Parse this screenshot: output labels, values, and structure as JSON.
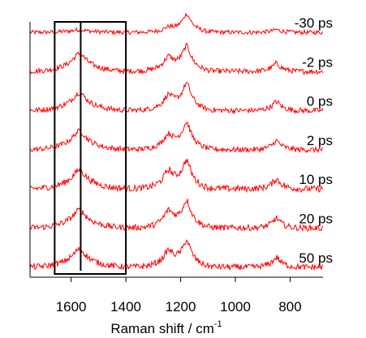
{
  "chart_data": {
    "type": "line",
    "xlabel": "Raman shift / cm",
    "xlabel_superscript": "-1",
    "x_reversed": true,
    "xlim": [
      1750,
      680
    ],
    "x_ticks": [
      {
        "value": 1600,
        "label": "1600"
      },
      {
        "value": 1400,
        "label": "1400"
      },
      {
        "value": 1200,
        "label": "1200"
      },
      {
        "value": 1000,
        "label": "1000"
      },
      {
        "value": 800,
        "label": "800"
      }
    ],
    "line_color": "#ff0000",
    "frame_color": "#000000",
    "highlight_box": {
      "x_from": 1660,
      "x_to": 1400
    },
    "marker_line": {
      "x": 1565
    },
    "peaks": [
      {
        "x": 1570,
        "width": 28
      },
      {
        "x": 1245,
        "width": 18
      },
      {
        "x": 1178,
        "width": 16
      },
      {
        "x": 850,
        "width": 14
      }
    ],
    "series": [
      {
        "name": "-30 ps",
        "peak_heights": [
          0.15,
          0.25,
          1.0,
          0.15
        ],
        "noise": 0.12
      },
      {
        "name": "-2 ps",
        "peak_heights": [
          1.0,
          0.75,
          1.35,
          0.45
        ],
        "noise": 0.15
      },
      {
        "name": "0 ps",
        "peak_heights": [
          1.0,
          0.8,
          1.45,
          0.5
        ],
        "noise": 0.15
      },
      {
        "name": "2 ps",
        "peak_heights": [
          1.05,
          0.8,
          1.45,
          0.5
        ],
        "noise": 0.15
      },
      {
        "name": "10 ps",
        "peak_heights": [
          1.05,
          0.95,
          1.5,
          0.55
        ],
        "noise": 0.18
      },
      {
        "name": "20 ps",
        "peak_heights": [
          1.0,
          0.9,
          1.45,
          0.55
        ],
        "noise": 0.17
      },
      {
        "name": "50 ps",
        "peak_heights": [
          1.0,
          0.85,
          1.4,
          0.55
        ],
        "noise": 0.17
      }
    ]
  }
}
